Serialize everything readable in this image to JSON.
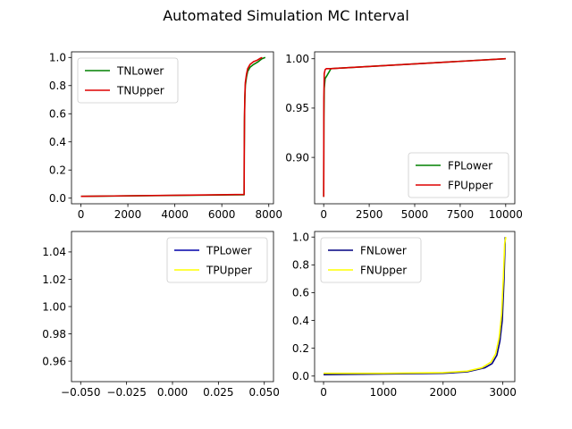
{
  "figure": {
    "title": "Automated Simulation MC Interval"
  },
  "chart_data": [
    {
      "type": "line",
      "xlim": [
        -400,
        8200
      ],
      "ylim": [
        -0.04,
        1.04
      ],
      "xticks": [
        0,
        2000,
        4000,
        6000,
        8000
      ],
      "xtick_labels": [
        "0",
        "2000",
        "4000",
        "6000",
        "8000"
      ],
      "yticks": [
        0.0,
        0.2,
        0.4,
        0.6,
        0.8,
        1.0
      ],
      "ytick_labels": [
        "0.0",
        "0.2",
        "0.4",
        "0.6",
        "0.8",
        "1.0"
      ],
      "legend": "upper-left",
      "series": [
        {
          "name": "TNLower",
          "color": "#008000",
          "x": [
            0,
            6950,
            6955,
            6965,
            6980,
            7000,
            7050,
            7100,
            7200,
            7350,
            7550,
            7700,
            7850
          ],
          "y": [
            0.013,
            0.024,
            0.3,
            0.55,
            0.7,
            0.8,
            0.86,
            0.9,
            0.93,
            0.95,
            0.97,
            0.99,
            1.0
          ]
        },
        {
          "name": "TNUpper",
          "color": "#dd0000",
          "x": [
            0,
            6950,
            6955,
            6965,
            6980,
            7000,
            7050,
            7100,
            7200,
            7350,
            7500,
            7650,
            7720
          ],
          "y": [
            0.013,
            0.026,
            0.32,
            0.57,
            0.72,
            0.82,
            0.88,
            0.92,
            0.95,
            0.97,
            0.98,
            0.995,
            1.0
          ]
        }
      ]
    },
    {
      "type": "line",
      "xlim": [
        -500,
        10500
      ],
      "ylim": [
        0.853,
        1.007
      ],
      "xticks": [
        0,
        2500,
        5000,
        7500,
        10000
      ],
      "xtick_labels": [
        "0",
        "2500",
        "5000",
        "7500",
        "10000"
      ],
      "yticks": [
        0.9,
        0.95,
        1.0
      ],
      "ytick_labels": [
        "0.90",
        "0.95",
        "1.00"
      ],
      "legend": "lower-right",
      "series": [
        {
          "name": "FPLower",
          "color": "#008000",
          "x": [
            0,
            10,
            30,
            80,
            150,
            400,
            10000
          ],
          "y": [
            0.86,
            0.94,
            0.97,
            0.98,
            0.982,
            0.99,
            1.0
          ]
        },
        {
          "name": "FPUpper",
          "color": "#dd0000",
          "x": [
            0,
            10,
            30,
            80,
            150,
            400,
            10000
          ],
          "y": [
            0.86,
            0.96,
            0.985,
            0.989,
            0.99,
            0.99,
            1.0
          ]
        }
      ]
    },
    {
      "type": "line",
      "xlim": [
        -0.055,
        0.055
      ],
      "ylim": [
        0.945,
        1.055
      ],
      "xticks": [
        -0.05,
        -0.025,
        0.0,
        0.025,
        0.05
      ],
      "xtick_labels": [
        "−0.050",
        "−0.025",
        "0.000",
        "0.025",
        "0.050"
      ],
      "yticks": [
        0.96,
        0.98,
        1.0,
        1.02,
        1.04
      ],
      "ytick_labels": [
        "0.96",
        "0.98",
        "1.00",
        "1.02",
        "1.04"
      ],
      "legend": "upper-right",
      "series": [
        {
          "name": "TPLower",
          "color": "#0000aa",
          "x": [],
          "y": []
        },
        {
          "name": "TPUpper",
          "color": "#ffff00",
          "x": [],
          "y": []
        }
      ]
    },
    {
      "type": "line",
      "xlim": [
        -150,
        3200
      ],
      "ylim": [
        -0.04,
        1.04
      ],
      "xticks": [
        0,
        1000,
        2000,
        3000
      ],
      "xtick_labels": [
        "0",
        "1000",
        "2000",
        "3000"
      ],
      "yticks": [
        0.0,
        0.2,
        0.4,
        0.6,
        0.8,
        1.0
      ],
      "ytick_labels": [
        "0.0",
        "0.2",
        "0.4",
        "0.6",
        "0.8",
        "1.0"
      ],
      "legend": "upper-left",
      "series": [
        {
          "name": "FNLower",
          "color": "#000080",
          "x": [
            0,
            1000,
            2000,
            2400,
            2700,
            2820,
            2900,
            2950,
            2990,
            3020,
            3040
          ],
          "y": [
            0.01,
            0.015,
            0.02,
            0.03,
            0.06,
            0.09,
            0.15,
            0.25,
            0.4,
            0.7,
            1.0
          ]
        },
        {
          "name": "FNUpper",
          "color": "#ffff00",
          "x": [
            0,
            1000,
            2000,
            2400,
            2650,
            2800,
            2880,
            2940,
            2980,
            3010,
            3030,
            3050
          ],
          "y": [
            0.02,
            0.02,
            0.025,
            0.035,
            0.06,
            0.1,
            0.16,
            0.28,
            0.45,
            0.72,
            0.95,
            1.0
          ]
        }
      ]
    }
  ]
}
